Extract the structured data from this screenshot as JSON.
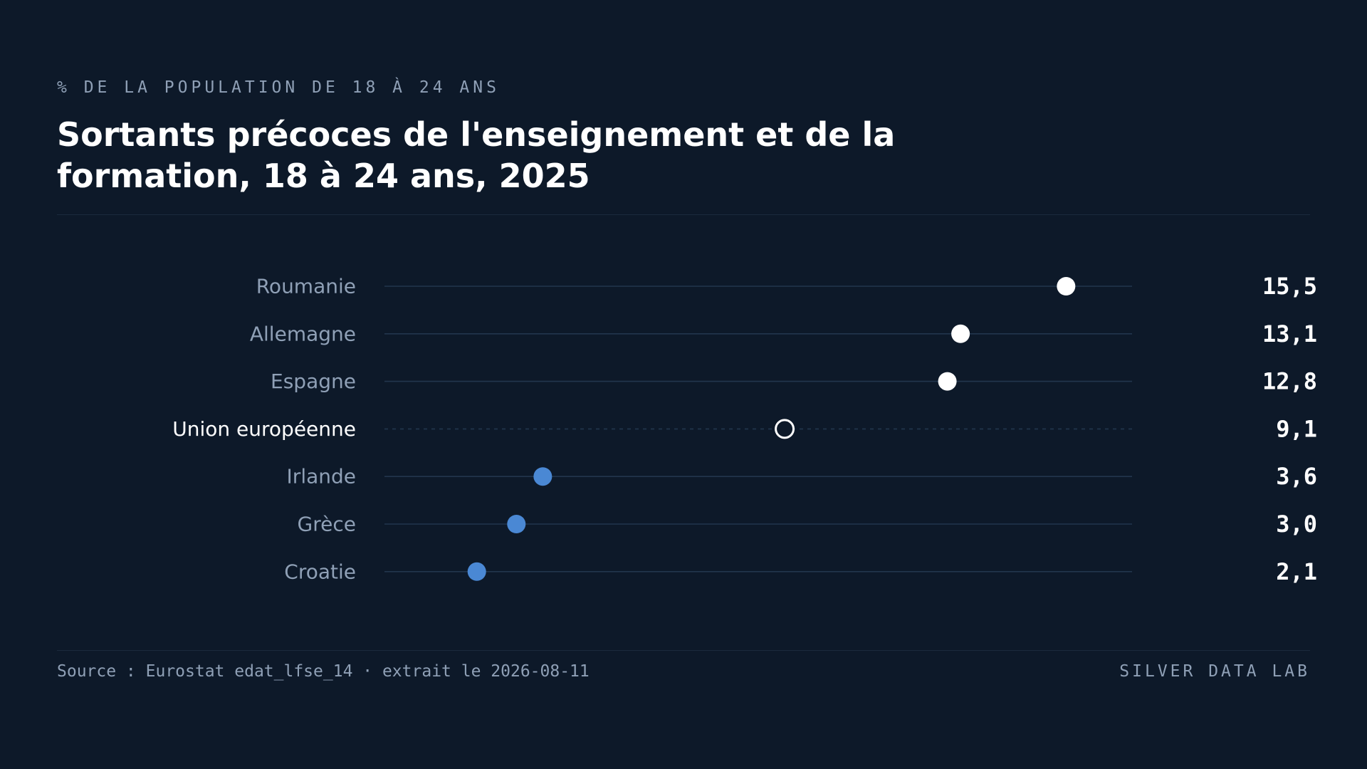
{
  "header": {
    "eyebrow": "% DE LA POPULATION DE 18 À 24 ANS",
    "title": "Sortants précoces de l'enseignement et de la formation, 18 à 24 ans, 2025"
  },
  "footer": {
    "source": "Source : Eurostat edat_lfse_14 · extrait le 2026-08-11",
    "brand": "SILVER DATA LAB"
  },
  "colors": {
    "background": "#0d1929",
    "high_dot": "#ffffff",
    "low_dot": "#4a88d4",
    "reference_dot_stroke": "#ffffff",
    "track": "#22364d",
    "label": "#8fa0b6",
    "reference_label": "#ffffff"
  },
  "chart_data": {
    "type": "scatter",
    "title": "Sortants précoces de l'enseignement et de la formation, 18 à 24 ans, 2025",
    "unit": "% de la population de 18 à 24 ans",
    "xlim": [
      0,
      17
    ],
    "grid": false,
    "categories": [
      "Roumanie",
      "Allemagne",
      "Espagne",
      "Union européenne",
      "Irlande",
      "Grèce",
      "Croatie"
    ],
    "values": [
      15.5,
      13.1,
      12.8,
      9.1,
      3.6,
      3.0,
      2.1
    ],
    "value_labels": [
      "15,5",
      "13,1",
      "12,8",
      "9,1",
      "3,6",
      "3,0",
      "2,1"
    ],
    "reference": "Union européenne"
  }
}
